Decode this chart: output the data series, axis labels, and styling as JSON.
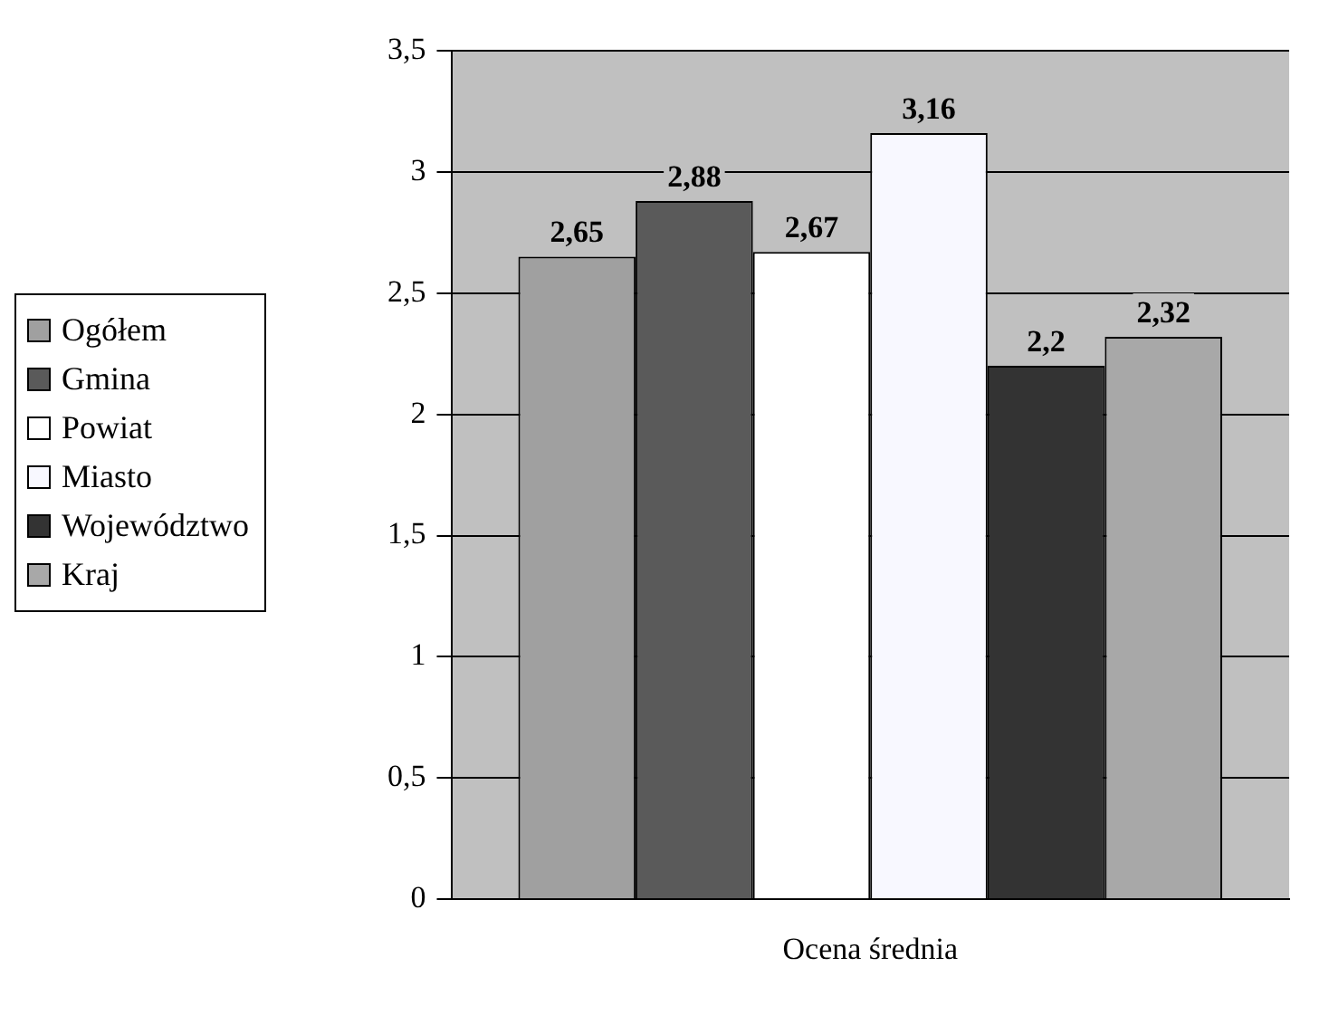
{
  "chart_data": {
    "type": "bar",
    "categories": [
      "Ocena średnia"
    ],
    "series": [
      {
        "name": "Ogółem",
        "color": "#a0a0a0",
        "values": [
          2.65
        ],
        "value_labels": [
          "2,65"
        ]
      },
      {
        "name": "Gmina",
        "color": "#5a5a5a",
        "values": [
          2.88
        ],
        "value_labels": [
          "2,88"
        ]
      },
      {
        "name": "Powiat",
        "color": "#ffffff",
        "values": [
          2.67
        ],
        "value_labels": [
          "2,67"
        ]
      },
      {
        "name": "Miasto",
        "color": "#f8f8ff",
        "values": [
          3.16
        ],
        "value_labels": [
          "3,16"
        ]
      },
      {
        "name": "Województwo",
        "color": "#333333",
        "values": [
          2.2
        ],
        "value_labels": [
          "2,2"
        ]
      },
      {
        "name": "Kraj",
        "color": "#a8a8a8",
        "values": [
          2.32
        ],
        "value_labels": [
          "2,32"
        ]
      }
    ],
    "ylim": [
      0,
      3.5
    ],
    "yticks": [
      0,
      {
        "value": 0.5,
        "label": "0,5"
      },
      1,
      {
        "value": 1.5,
        "label": "1,5"
      },
      2,
      {
        "value": 2.5,
        "label": "2,5"
      },
      3,
      {
        "value": 3.5,
        "label": "3,5"
      }
    ],
    "grid": "y",
    "legend": "left"
  }
}
